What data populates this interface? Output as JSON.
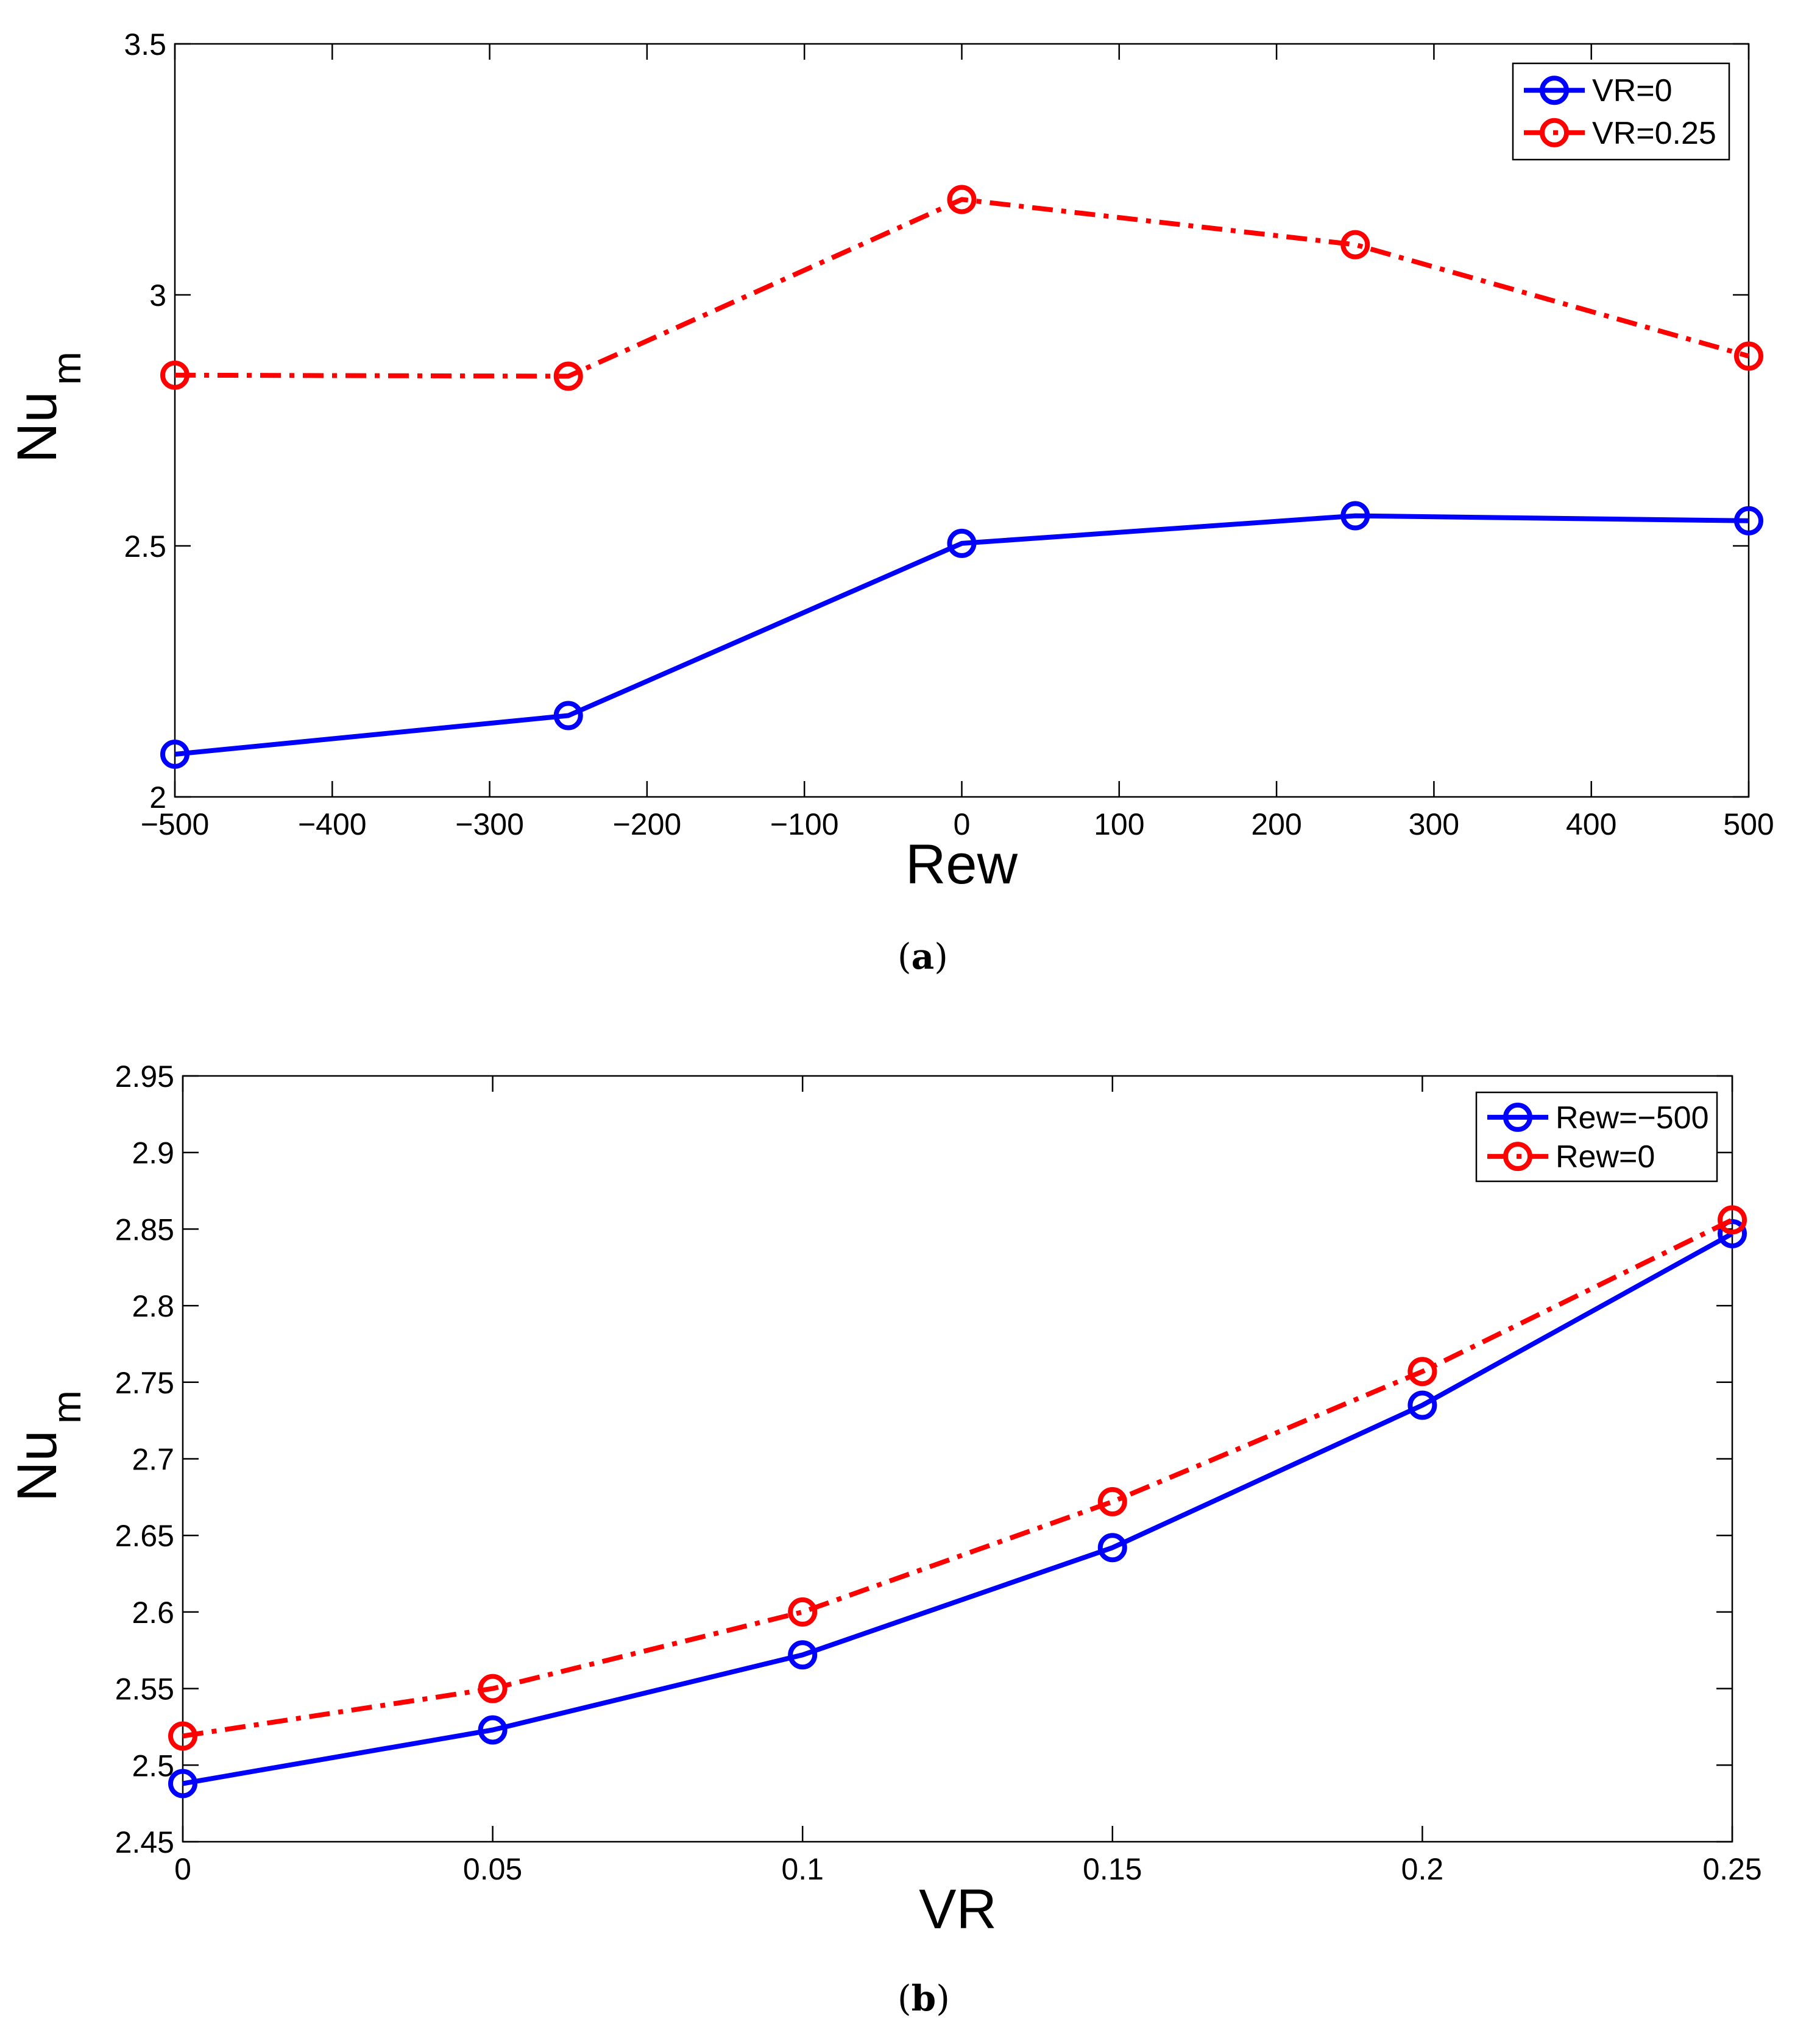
{
  "chart_data": [
    {
      "type": "line",
      "panel": "a",
      "caption_letter": "a",
      "caption_open": "(",
      "caption_close": ")",
      "xlabel": "Rew",
      "ylabel_main": "Nu",
      "ylabel_sub": "m",
      "xlim": [
        -500,
        500
      ],
      "ylim": [
        2,
        3.5
      ],
      "xticks": [
        -500,
        -400,
        -300,
        -200,
        -100,
        0,
        100,
        200,
        300,
        400,
        500
      ],
      "xtick_labels": [
        "−500",
        "−400",
        "−300",
        "−200",
        "−100",
        "0",
        "100",
        "200",
        "300",
        "400",
        "500"
      ],
      "yticks": [
        2,
        2.5,
        3,
        3.5
      ],
      "ytick_labels": [
        "2",
        "2.5",
        "3",
        "3.5"
      ],
      "legend_position": "top-right",
      "series": [
        {
          "name": "VR=0",
          "color": "#0000ff",
          "line_style": "solid",
          "x": [
            -500,
            -250,
            0,
            250,
            500
          ],
          "y": [
            2.085,
            2.162,
            2.505,
            2.56,
            2.55
          ]
        },
        {
          "name": "VR=0.25",
          "color": "#ff0000",
          "line_style": "dashdot",
          "x": [
            -500,
            -250,
            0,
            250,
            500
          ],
          "y": [
            2.84,
            2.838,
            3.19,
            3.1,
            2.878
          ]
        }
      ]
    },
    {
      "type": "line",
      "panel": "b",
      "caption_letter": "b",
      "caption_open": "(",
      "caption_close": ")",
      "xlabel": "VR",
      "ylabel_main": "Nu",
      "ylabel_sub": "m",
      "xlim": [
        0,
        0.25
      ],
      "ylim": [
        2.45,
        2.95
      ],
      "xticks": [
        0,
        0.05,
        0.1,
        0.15,
        0.2,
        0.25
      ],
      "xtick_labels": [
        "0",
        "0.05",
        "0.1",
        "0.15",
        "0.2",
        "0.25"
      ],
      "yticks": [
        2.45,
        2.5,
        2.55,
        2.6,
        2.65,
        2.7,
        2.75,
        2.8,
        2.85,
        2.9,
        2.95
      ],
      "ytick_labels": [
        "2.45",
        "2.5",
        "2.55",
        "2.6",
        "2.65",
        "2.7",
        "2.75",
        "2.8",
        "2.85",
        "2.9",
        "2.95"
      ],
      "legend_position": "top-right",
      "series": [
        {
          "name": "Rew=−500",
          "color": "#0000ff",
          "line_style": "solid",
          "x": [
            0,
            0.05,
            0.1,
            0.15,
            0.2,
            0.25
          ],
          "y": [
            2.488,
            2.523,
            2.572,
            2.642,
            2.735,
            2.847
          ]
        },
        {
          "name": "Rew=0",
          "color": "#ff0000",
          "line_style": "dashdot",
          "x": [
            0,
            0.05,
            0.1,
            0.15,
            0.2,
            0.25
          ],
          "y": [
            2.519,
            2.55,
            2.6,
            2.672,
            2.757,
            2.856
          ]
        }
      ]
    }
  ]
}
